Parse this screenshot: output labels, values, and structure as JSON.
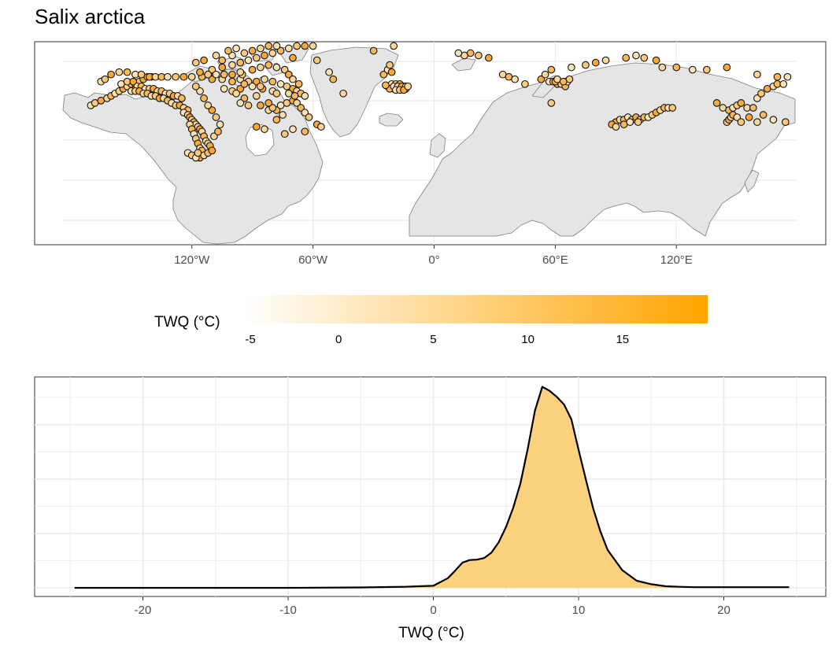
{
  "title": "Salix arctica",
  "colors": {
    "accent": "#FFA500",
    "fill": "#FDD27F",
    "land": "#E5E5E5",
    "border": "#7F7F7F",
    "grid": "#EBEBEB"
  },
  "map": {
    "x_ticks": [
      "120°W",
      "60°W",
      "0°",
      "60°E",
      "120°E"
    ],
    "points_lonlat": [
      [
        -170,
        57
      ],
      [
        -168,
        58
      ],
      [
        -165,
        59
      ],
      [
        -162,
        60
      ],
      [
        -160,
        61
      ],
      [
        -158,
        62
      ],
      [
        -156,
        63
      ],
      [
        -154,
        64
      ],
      [
        -152,
        65
      ],
      [
        -150,
        66
      ],
      [
        -148,
        66
      ],
      [
        -146,
        67
      ],
      [
        -144,
        68
      ],
      [
        -142,
        69
      ],
      [
        -140,
        69
      ],
      [
        -165,
        67
      ],
      [
        -163,
        68
      ],
      [
        -160,
        70
      ],
      [
        -156,
        71
      ],
      [
        -152,
        71
      ],
      [
        -148,
        70
      ],
      [
        -145,
        70
      ],
      [
        -141,
        69
      ],
      [
        -138,
        69
      ],
      [
        -135,
        69
      ],
      [
        -132,
        69
      ],
      [
        -128,
        69
      ],
      [
        -124,
        69
      ],
      [
        -120,
        69
      ],
      [
        -115,
        69
      ],
      [
        -155,
        66
      ],
      [
        -152,
        67
      ],
      [
        -149,
        67
      ],
      [
        -147,
        65
      ],
      [
        -145,
        65
      ],
      [
        -143,
        64
      ],
      [
        -141,
        64
      ],
      [
        -139,
        64
      ],
      [
        -137,
        63
      ],
      [
        -135,
        63
      ],
      [
        -133,
        62
      ],
      [
        -131,
        62
      ],
      [
        -129,
        61
      ],
      [
        -127,
        61
      ],
      [
        -125,
        60
      ],
      [
        -150,
        63
      ],
      [
        -148,
        63
      ],
      [
        -146,
        63
      ],
      [
        -144,
        62
      ],
      [
        -142,
        62
      ],
      [
        -140,
        61
      ],
      [
        -138,
        61
      ],
      [
        -136,
        60
      ],
      [
        -134,
        60
      ],
      [
        -132,
        59
      ],
      [
        -130,
        58
      ],
      [
        -128,
        57
      ],
      [
        -126,
        57
      ],
      [
        -124,
        56
      ],
      [
        -122,
        55
      ],
      [
        -124,
        54
      ],
      [
        -122,
        53
      ],
      [
        -121,
        52
      ],
      [
        -120,
        51
      ],
      [
        -119,
        50
      ],
      [
        -118,
        49
      ],
      [
        -117,
        48
      ],
      [
        -116,
        47
      ],
      [
        -115,
        46
      ],
      [
        -114,
        44
      ],
      [
        -113,
        42
      ],
      [
        -112,
        41
      ],
      [
        -111,
        40
      ],
      [
        -121,
        49
      ],
      [
        -120,
        47
      ],
      [
        -119,
        45
      ],
      [
        -118,
        43
      ],
      [
        -117,
        41
      ],
      [
        -116,
        39
      ],
      [
        -115,
        38
      ],
      [
        -122,
        37
      ],
      [
        -120,
        36
      ],
      [
        -116,
        35
      ],
      [
        -114,
        36
      ],
      [
        -112,
        37
      ],
      [
        -118,
        35
      ],
      [
        -117,
        37
      ],
      [
        -110,
        38
      ],
      [
        -109,
        44
      ],
      [
        -107,
        46
      ],
      [
        -106,
        49
      ],
      [
        -108,
        52
      ],
      [
        -110,
        55
      ],
      [
        -112,
        57
      ],
      [
        -114,
        60
      ],
      [
        -116,
        63
      ],
      [
        -118,
        65
      ],
      [
        -110,
        68
      ],
      [
        -105,
        68
      ],
      [
        -100,
        67
      ],
      [
        -96,
        68
      ],
      [
        -92,
        67
      ],
      [
        -88,
        67
      ],
      [
        -84,
        68
      ],
      [
        -80,
        67
      ],
      [
        -76,
        66
      ],
      [
        -73,
        65
      ],
      [
        -70,
        64
      ],
      [
        -68,
        63
      ],
      [
        -66,
        62
      ],
      [
        -64,
        61
      ],
      [
        -110,
        72
      ],
      [
        -105,
        73
      ],
      [
        -100,
        74
      ],
      [
        -96,
        75
      ],
      [
        -92,
        76
      ],
      [
        -88,
        77
      ],
      [
        -84,
        78
      ],
      [
        -80,
        79
      ],
      [
        -76,
        80
      ],
      [
        -72,
        81
      ],
      [
        -68,
        82
      ],
      [
        -64,
        82
      ],
      [
        -60,
        82
      ],
      [
        -105,
        76
      ],
      [
        -100,
        78
      ],
      [
        -94,
        79
      ],
      [
        -90,
        80
      ],
      [
        -86,
        81
      ],
      [
        -82,
        82
      ],
      [
        -78,
        82
      ],
      [
        -118,
        75
      ],
      [
        -114,
        76
      ],
      [
        -108,
        78
      ],
      [
        -102,
        80
      ],
      [
        -98,
        81
      ],
      [
        -95,
        70
      ],
      [
        -90,
        72
      ],
      [
        -86,
        73
      ],
      [
        -82,
        74
      ],
      [
        -78,
        73
      ],
      [
        -74,
        72
      ],
      [
        -72,
        70
      ],
      [
        -70,
        68
      ],
      [
        -67,
        66
      ],
      [
        -80,
        63
      ],
      [
        -78,
        62
      ],
      [
        -85,
        64
      ],
      [
        -88,
        61
      ],
      [
        -94,
        60
      ],
      [
        -96,
        58
      ],
      [
        -92,
        57
      ],
      [
        -86,
        57
      ],
      [
        -82,
        55
      ],
      [
        -78,
        55
      ],
      [
        -76,
        57
      ],
      [
        -73,
        58
      ],
      [
        -70,
        59
      ],
      [
        -68,
        58
      ],
      [
        -66,
        56
      ],
      [
        -64,
        54
      ],
      [
        -62,
        52
      ],
      [
        -58,
        49
      ],
      [
        -56,
        48
      ],
      [
        -64,
        46
      ],
      [
        -70,
        47
      ],
      [
        -74,
        45
      ],
      [
        -88,
        48
      ],
      [
        -84,
        47
      ],
      [
        -78,
        51
      ],
      [
        -75,
        53
      ],
      [
        -80,
        56
      ],
      [
        -82,
        58
      ],
      [
        -72,
        62
      ],
      [
        -69,
        61
      ],
      [
        -104,
        64
      ],
      [
        -100,
        63
      ],
      [
        -96,
        64
      ],
      [
        -98,
        62
      ],
      [
        -94,
        66
      ],
      [
        -90,
        65
      ],
      [
        -86,
        65
      ],
      [
        -100,
        70
      ],
      [
        -96,
        71
      ],
      [
        -104,
        70
      ],
      [
        -108,
        70
      ],
      [
        -112,
        70
      ],
      [
        -116,
        71
      ],
      [
        -45,
        62
      ],
      [
        -50,
        68
      ],
      [
        -52,
        71
      ],
      [
        -58,
        76
      ],
      [
        -70,
        77
      ],
      [
        -20,
        82
      ],
      [
        -30,
        80
      ],
      [
        -22,
        65
      ],
      [
        -21,
        64.5
      ],
      [
        -20,
        64
      ],
      [
        -19,
        64
      ],
      [
        -18,
        64
      ],
      [
        -17,
        64
      ],
      [
        -16,
        64
      ],
      [
        -15,
        64
      ],
      [
        -14,
        64
      ],
      [
        -23,
        65
      ],
      [
        -21,
        66
      ],
      [
        -19,
        66
      ],
      [
        -17,
        66
      ],
      [
        -15,
        65
      ],
      [
        -22,
        64
      ],
      [
        -20,
        65
      ],
      [
        -18,
        65
      ],
      [
        -16,
        65
      ],
      [
        -14,
        65
      ],
      [
        -24,
        65.5
      ],
      [
        -19,
        63.5
      ],
      [
        -17,
        63.5
      ],
      [
        -15,
        63.5
      ],
      [
        -13,
        65
      ],
      [
        -25,
        70
      ],
      [
        -23,
        72
      ],
      [
        -22,
        74
      ],
      [
        -21,
        71
      ],
      [
        15,
        78
      ],
      [
        18,
        79
      ],
      [
        12,
        79
      ],
      [
        22,
        78
      ],
      [
        27,
        77
      ],
      [
        34,
        70
      ],
      [
        37,
        69
      ],
      [
        40,
        68
      ],
      [
        45,
        66
      ],
      [
        53,
        68
      ],
      [
        55,
        70
      ],
      [
        58,
        72
      ],
      [
        57,
        67
      ],
      [
        59,
        67
      ],
      [
        61,
        66
      ],
      [
        63,
        66
      ],
      [
        65,
        65
      ],
      [
        66,
        67
      ],
      [
        67,
        68
      ],
      [
        60,
        67
      ],
      [
        61,
        68
      ],
      [
        64,
        67
      ],
      [
        68,
        73
      ],
      [
        75,
        74
      ],
      [
        80,
        75
      ],
      [
        85,
        76
      ],
      [
        95,
        77
      ],
      [
        100,
        78
      ],
      [
        104,
        77
      ],
      [
        110,
        76
      ],
      [
        113,
        73
      ],
      [
        120,
        73
      ],
      [
        128,
        72
      ],
      [
        135,
        72
      ],
      [
        145,
        73
      ],
      [
        160,
        70
      ],
      [
        170,
        69
      ],
      [
        175,
        69
      ],
      [
        58,
        58
      ],
      [
        90,
        50
      ],
      [
        92,
        51
      ],
      [
        94,
        51
      ],
      [
        96,
        52
      ],
      [
        98,
        51
      ],
      [
        100,
        52
      ],
      [
        102,
        51
      ],
      [
        104,
        52
      ],
      [
        106,
        52
      ],
      [
        108,
        53
      ],
      [
        110,
        54
      ],
      [
        112,
        55
      ],
      [
        114,
        56
      ],
      [
        116,
        56
      ],
      [
        118,
        56
      ],
      [
        88,
        49
      ],
      [
        90,
        48
      ],
      [
        94,
        49
      ],
      [
        97,
        50
      ],
      [
        101,
        50
      ],
      [
        140,
        58
      ],
      [
        143,
        56
      ],
      [
        146,
        55
      ],
      [
        148,
        56
      ],
      [
        150,
        57
      ],
      [
        152,
        58
      ],
      [
        155,
        56
      ],
      [
        158,
        56
      ],
      [
        160,
        60
      ],
      [
        162,
        62
      ],
      [
        165,
        64
      ],
      [
        168,
        65
      ],
      [
        170,
        66
      ],
      [
        173,
        66
      ],
      [
        145,
        50
      ],
      [
        146,
        51
      ],
      [
        147,
        52
      ],
      [
        148,
        53
      ],
      [
        150,
        52
      ],
      [
        152,
        50
      ],
      [
        156,
        52
      ],
      [
        160,
        50
      ],
      [
        163,
        53
      ],
      [
        168,
        51
      ],
      [
        174,
        50
      ]
    ]
  },
  "legend": {
    "title": "TWQ (°C)",
    "ticks": [
      "-5",
      "0",
      "5",
      "10",
      "15"
    ],
    "tick_values": [
      -5,
      0,
      5,
      10,
      15
    ],
    "range": [
      -5,
      19.5
    ],
    "low_color": "#FFFFFF",
    "high_color": "#FFA500"
  },
  "chart_data": {
    "type": "area",
    "title": "",
    "xlabel": "TWQ (°C)",
    "ylabel": "",
    "x_ticks": [
      "-20",
      "-10",
      "0",
      "10",
      "20"
    ],
    "xlim": [
      -26.5,
      27
    ],
    "ylim": [
      0,
      1
    ],
    "grid": true,
    "fill_color": "#FDD27F",
    "line_color": "#000000",
    "x": [
      -24.7,
      -20,
      -15,
      -10,
      -5,
      -2,
      -1,
      0,
      1,
      1.5,
      2,
      2.5,
      3,
      3.5,
      4,
      4.5,
      5,
      5.5,
      6,
      6.5,
      7,
      7.5,
      8,
      8.5,
      9,
      9.5,
      10,
      10.5,
      11,
      11.5,
      12,
      13,
      14,
      15,
      16,
      17,
      18,
      19,
      20,
      22,
      24.5
    ],
    "y": [
      0.0,
      0.0,
      0.0,
      0.0,
      0.002,
      0.005,
      0.008,
      0.01,
      0.048,
      0.085,
      0.125,
      0.138,
      0.14,
      0.148,
      0.175,
      0.226,
      0.302,
      0.398,
      0.52,
      0.69,
      0.88,
      0.998,
      0.978,
      0.948,
      0.91,
      0.837,
      0.685,
      0.538,
      0.395,
      0.28,
      0.188,
      0.088,
      0.035,
      0.018,
      0.008,
      0.005,
      0.003,
      0.003,
      0.003,
      0.003,
      0.003
    ]
  }
}
